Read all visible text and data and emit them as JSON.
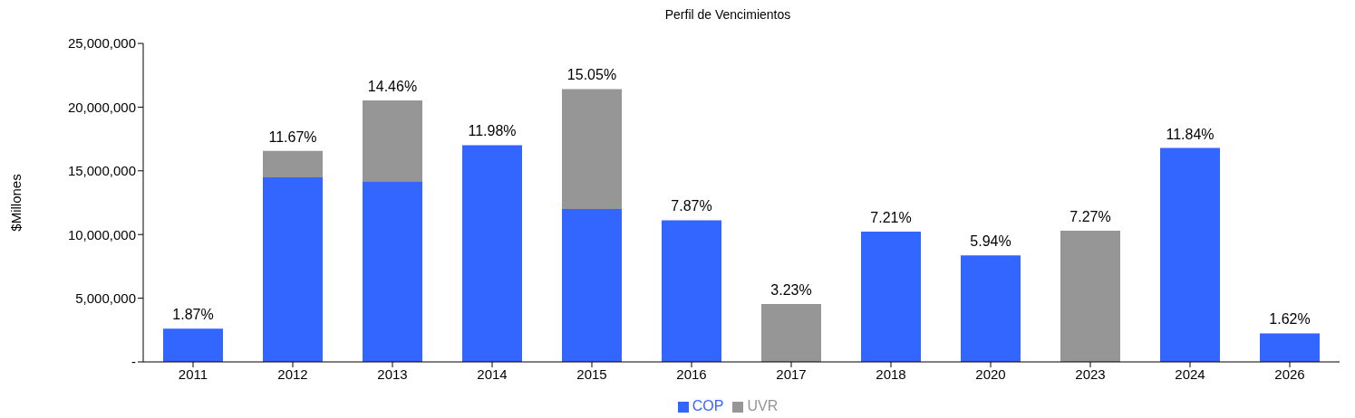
{
  "chart_data": {
    "type": "bar",
    "title": "Perfil de Vencimientos",
    "ylabel": "$Millones",
    "stacked": true,
    "categories": [
      "2011",
      "2012",
      "2013",
      "2014",
      "2015",
      "2016",
      "2017",
      "2018",
      "2020",
      "2023",
      "2024",
      "2026"
    ],
    "series": [
      {
        "name": "COP",
        "color": "#3366ff",
        "values": [
          2610000,
          14480000,
          14180000,
          17010000,
          12010000,
          11120000,
          null,
          10220000,
          8360000,
          null,
          16790000,
          2240000
        ]
      },
      {
        "name": "UVR",
        "color": "#969696",
        "values": [
          null,
          2090000,
          6340000,
          null,
          9410000,
          null,
          4550000,
          null,
          null,
          10300000,
          null,
          null
        ]
      }
    ],
    "annotations": [
      {
        "text": "1.87%",
        "x": "2011",
        "y": 2610000
      },
      {
        "text": "11.67%",
        "x": "2012",
        "y": 16570000
      },
      {
        "text": "14.46%",
        "x": "2013",
        "y": 20520000
      },
      {
        "text": "11.98%",
        "x": "2014",
        "y": 17010000
      },
      {
        "text": "15.05%",
        "x": "2015",
        "y": 21420000
      },
      {
        "text": "7.87%",
        "x": "2016",
        "y": 11120000
      },
      {
        "text": "3.23%",
        "x": "2017",
        "y": 4550000
      },
      {
        "text": "7.21%",
        "x": "2018",
        "y": 10220000
      },
      {
        "text": "5.94%",
        "x": "2020",
        "y": 8360000
      },
      {
        "text": "7.27%",
        "x": "2023",
        "y": 10300000
      },
      {
        "text": "11.84%",
        "x": "2024",
        "y": 16790000
      },
      {
        "text": "1.62%",
        "x": "2026",
        "y": 2240000
      }
    ],
    "ylim": [
      0,
      25000000
    ],
    "yticks": [
      {
        "value": 0,
        "label": "-"
      },
      {
        "value": 5000000,
        "label": "5,000,000"
      },
      {
        "value": 10000000,
        "label": "10,000,000"
      },
      {
        "value": 15000000,
        "label": "15,000,000"
      },
      {
        "value": 20000000,
        "label": "20,000,000"
      },
      {
        "value": 25000000,
        "label": "25,000,000"
      }
    ],
    "grid": false,
    "legend": "bottom"
  }
}
